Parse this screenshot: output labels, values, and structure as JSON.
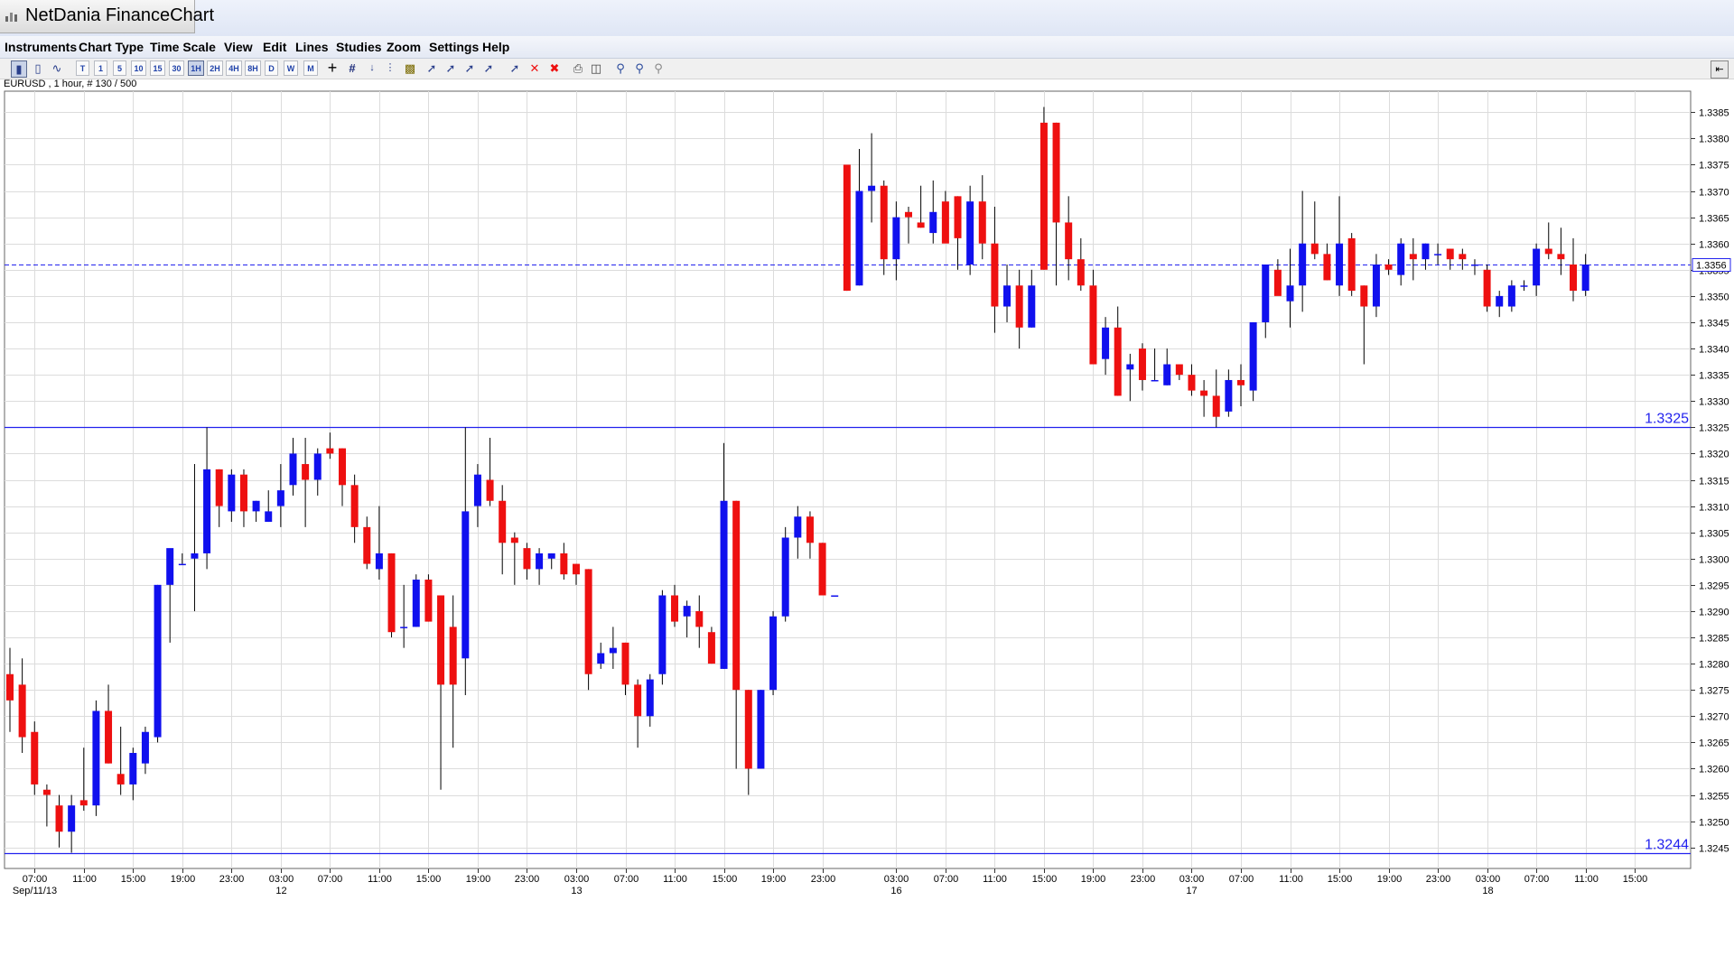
{
  "app": {
    "title": "NetDania FinanceChart"
  },
  "menu": [
    "Instruments",
    "Chart Type",
    "Time Scale",
    "View",
    "Edit",
    "Lines",
    "Studies",
    "Zoom",
    "Settings",
    "Help"
  ],
  "toolbar": {
    "timeframes": [
      "T",
      "1",
      "5",
      "10",
      "15",
      "30",
      "1H",
      "2H",
      "4H",
      "8H",
      "D",
      "W",
      "M"
    ],
    "active_timeframe": "1H",
    "icons": [
      "candles-icon",
      "bar-chart-icon",
      "line-chart-icon",
      "crosshair-icon",
      "grid-icon",
      "arrow-down-icon",
      "dotted-bars-icon",
      "volume-icon",
      "trendline-icon",
      "parallel-lines-icon",
      "channel-icon",
      "fibonacci-icon",
      "delete-line-icon",
      "delete-icon",
      "delete-all-icon",
      "print-icon",
      "print-preview-icon",
      "zoom-in-icon",
      "zoom-out-icon",
      "zoom-reset-icon"
    ]
  },
  "chart_info": "EURUSD , 1 hour, # 130 / 500",
  "colors": {
    "up": "#1010ee",
    "down": "#ee1010",
    "level": "#2222ee",
    "grid": "#dcdcdc"
  },
  "chart_data": {
    "type": "candlestick",
    "instrument": "EURUSD",
    "interval": "1 hour",
    "ylim": [
      1.3241,
      1.3389
    ],
    "yticks": [
      1.3245,
      1.325,
      1.3255,
      1.326,
      1.3265,
      1.327,
      1.3275,
      1.328,
      1.3285,
      1.329,
      1.3295,
      1.33,
      1.3305,
      1.331,
      1.3315,
      1.332,
      1.3325,
      1.333,
      1.3335,
      1.334,
      1.3345,
      1.335,
      1.3355,
      1.336,
      1.3365,
      1.337,
      1.3375,
      1.338,
      1.3385
    ],
    "current_price": 1.3356,
    "current_price_label": "1.3356",
    "levels": [
      {
        "value": 1.3325,
        "label": "1.3325"
      },
      {
        "value": 1.3244,
        "label": "1.3244"
      }
    ],
    "x_ticks": [
      {
        "i": 2,
        "label": "07:00",
        "date": "Sep/11/13"
      },
      {
        "i": 6,
        "label": "11:00"
      },
      {
        "i": 10,
        "label": "15:00"
      },
      {
        "i": 14,
        "label": "19:00"
      },
      {
        "i": 18,
        "label": "23:00"
      },
      {
        "i": 22,
        "label": "03:00",
        "date": "12"
      },
      {
        "i": 26,
        "label": "07:00"
      },
      {
        "i": 30,
        "label": "11:00"
      },
      {
        "i": 34,
        "label": "15:00"
      },
      {
        "i": 38,
        "label": "19:00"
      },
      {
        "i": 42,
        "label": "23:00"
      },
      {
        "i": 46,
        "label": "03:00",
        "date": "13"
      },
      {
        "i": 50,
        "label": "07:00"
      },
      {
        "i": 54,
        "label": "11:00"
      },
      {
        "i": 58,
        "label": "15:00"
      },
      {
        "i": 62,
        "label": "19:00"
      },
      {
        "i": 66,
        "label": "23:00"
      },
      {
        "i": 72,
        "label": "03:00",
        "date": "16"
      },
      {
        "i": 76,
        "label": "07:00"
      },
      {
        "i": 80,
        "label": "11:00"
      },
      {
        "i": 84,
        "label": "15:00"
      },
      {
        "i": 88,
        "label": "19:00"
      },
      {
        "i": 92,
        "label": "23:00"
      },
      {
        "i": 96,
        "label": "03:00",
        "date": "17"
      },
      {
        "i": 100,
        "label": "07:00"
      },
      {
        "i": 104,
        "label": "11:00"
      },
      {
        "i": 108,
        "label": "15:00"
      },
      {
        "i": 112,
        "label": "19:00"
      },
      {
        "i": 116,
        "label": "23:00"
      },
      {
        "i": 120,
        "label": "03:00",
        "date": "18"
      },
      {
        "i": 124,
        "label": "07:00"
      },
      {
        "i": 128,
        "label": "11:00"
      },
      {
        "i": 132,
        "label": "15:00"
      }
    ],
    "ohlc": [
      [
        1.3278,
        1.3283,
        1.3267,
        1.3273
      ],
      [
        1.3276,
        1.3281,
        1.3263,
        1.3266
      ],
      [
        1.3267,
        1.3269,
        1.3255,
        1.3257
      ],
      [
        1.3256,
        1.3257,
        1.3249,
        1.3255
      ],
      [
        1.3253,
        1.3255,
        1.3245,
        1.3248
      ],
      [
        1.3248,
        1.3255,
        1.3244,
        1.3253
      ],
      [
        1.3254,
        1.3264,
        1.3252,
        1.3253
      ],
      [
        1.3253,
        1.3273,
        1.3251,
        1.3271
      ],
      [
        1.3271,
        1.3276,
        1.3261,
        1.3261
      ],
      [
        1.3259,
        1.3268,
        1.3255,
        1.3257
      ],
      [
        1.3257,
        1.3264,
        1.3254,
        1.3263
      ],
      [
        1.3261,
        1.3268,
        1.3259,
        1.3267
      ],
      [
        1.3266,
        1.3295,
        1.3265,
        1.3295
      ],
      [
        1.3295,
        1.3301,
        1.3284,
        1.3302
      ],
      [
        1.3299,
        1.3301,
        1.3299,
        1.3299
      ],
      [
        1.33,
        1.3318,
        1.329,
        1.3301
      ],
      [
        1.3301,
        1.3325,
        1.3298,
        1.3317
      ],
      [
        1.3317,
        1.3317,
        1.3306,
        1.331
      ],
      [
        1.3309,
        1.3317,
        1.3307,
        1.3316
      ],
      [
        1.3316,
        1.3317,
        1.3306,
        1.3309
      ],
      [
        1.3309,
        1.3311,
        1.3307,
        1.3311
      ],
      [
        1.3307,
        1.3313,
        1.3307,
        1.3309
      ],
      [
        1.331,
        1.3318,
        1.3306,
        1.3313
      ],
      [
        1.3314,
        1.3323,
        1.3312,
        1.332
      ],
      [
        1.3318,
        1.3323,
        1.3306,
        1.3315
      ],
      [
        1.3315,
        1.3321,
        1.3312,
        1.332
      ],
      [
        1.3321,
        1.3324,
        1.3319,
        1.332
      ],
      [
        1.3321,
        1.3321,
        1.331,
        1.3314
      ],
      [
        1.3314,
        1.3316,
        1.3303,
        1.3306
      ],
      [
        1.3306,
        1.3308,
        1.3298,
        1.3299
      ],
      [
        1.3298,
        1.331,
        1.3296,
        1.3301
      ],
      [
        1.3301,
        1.3301,
        1.3285,
        1.3286
      ],
      [
        1.3287,
        1.3295,
        1.3283,
        1.3287
      ],
      [
        1.3287,
        1.3297,
        1.3287,
        1.3296
      ],
      [
        1.3296,
        1.3297,
        1.3288,
        1.3288
      ],
      [
        1.3293,
        1.3293,
        1.3256,
        1.3276
      ],
      [
        1.3287,
        1.3293,
        1.3264,
        1.3276
      ],
      [
        1.3281,
        1.3325,
        1.3274,
        1.3309
      ],
      [
        1.331,
        1.3318,
        1.3306,
        1.3316
      ],
      [
        1.3315,
        1.3323,
        1.331,
        1.3311
      ],
      [
        1.3311,
        1.3314,
        1.3297,
        1.3303
      ],
      [
        1.3304,
        1.3305,
        1.3295,
        1.3303
      ],
      [
        1.3302,
        1.3303,
        1.3296,
        1.3298
      ],
      [
        1.3298,
        1.3302,
        1.3295,
        1.3301
      ],
      [
        1.33,
        1.3301,
        1.3298,
        1.3301
      ],
      [
        1.3301,
        1.3303,
        1.3296,
        1.3297
      ],
      [
        1.3299,
        1.3299,
        1.3295,
        1.3297
      ],
      [
        1.3298,
        1.3298,
        1.3275,
        1.3278
      ],
      [
        1.328,
        1.3284,
        1.3279,
        1.3282
      ],
      [
        1.3282,
        1.3287,
        1.3279,
        1.3283
      ],
      [
        1.3284,
        1.3284,
        1.3274,
        1.3276
      ],
      [
        1.3276,
        1.3277,
        1.3264,
        1.327
      ],
      [
        1.327,
        1.3278,
        1.3268,
        1.3277
      ],
      [
        1.3278,
        1.3294,
        1.3276,
        1.3293
      ],
      [
        1.3293,
        1.3295,
        1.3287,
        1.3288
      ],
      [
        1.3289,
        1.3292,
        1.3285,
        1.3291
      ],
      [
        1.329,
        1.3293,
        1.3283,
        1.3287
      ],
      [
        1.3286,
        1.3287,
        1.328,
        1.328
      ],
      [
        1.3279,
        1.3322,
        1.3279,
        1.3311
      ],
      [
        1.3311,
        1.3311,
        1.326,
        1.3275
      ],
      [
        1.3275,
        1.3275,
        1.3255,
        1.326
      ],
      [
        1.326,
        1.3275,
        1.326,
        1.3275
      ],
      [
        1.3275,
        1.329,
        1.3274,
        1.3289
      ],
      [
        1.3289,
        1.3306,
        1.3288,
        1.3304
      ],
      [
        1.3304,
        1.331,
        1.33,
        1.3308
      ],
      [
        1.3308,
        1.3309,
        1.33,
        1.3303
      ],
      [
        1.3303,
        1.3303,
        1.3293,
        1.3293
      ],
      [
        1.3293,
        1.3293,
        1.3293,
        1.3293
      ],
      [
        1.3375,
        1.3375,
        1.3351,
        1.3351
      ],
      [
        1.3352,
        1.3378,
        1.3352,
        1.337
      ],
      [
        1.337,
        1.3381,
        1.3364,
        1.3371
      ],
      [
        1.3371,
        1.3372,
        1.3354,
        1.3357
      ],
      [
        1.3357,
        1.3368,
        1.3353,
        1.3365
      ],
      [
        1.3366,
        1.3367,
        1.336,
        1.3365
      ],
      [
        1.3364,
        1.3371,
        1.3363,
        1.3363
      ],
      [
        1.3362,
        1.3372,
        1.336,
        1.3366
      ],
      [
        1.3368,
        1.337,
        1.3361,
        1.336
      ],
      [
        1.3369,
        1.3369,
        1.3355,
        1.3361
      ],
      [
        1.3356,
        1.3371,
        1.3354,
        1.3368
      ],
      [
        1.3368,
        1.3373,
        1.3357,
        1.336
      ],
      [
        1.336,
        1.3367,
        1.3343,
        1.3348
      ],
      [
        1.3348,
        1.3356,
        1.3345,
        1.3352
      ],
      [
        1.3352,
        1.3355,
        1.334,
        1.3344
      ],
      [
        1.3344,
        1.3355,
        1.3344,
        1.3352
      ],
      [
        1.3383,
        1.3386,
        1.3355,
        1.3355
      ],
      [
        1.3383,
        1.3383,
        1.3352,
        1.3364
      ],
      [
        1.3364,
        1.3369,
        1.3353,
        1.3357
      ],
      [
        1.3357,
        1.3361,
        1.3351,
        1.3352
      ],
      [
        1.3352,
        1.3355,
        1.3337,
        1.3337
      ],
      [
        1.3338,
        1.3346,
        1.3335,
        1.3344
      ],
      [
        1.3344,
        1.3348,
        1.3331,
        1.3331
      ],
      [
        1.3336,
        1.3339,
        1.333,
        1.3337
      ],
      [
        1.334,
        1.3341,
        1.3332,
        1.3334
      ],
      [
        1.3334,
        1.334,
        1.3334,
        1.3334
      ],
      [
        1.3333,
        1.334,
        1.3333,
        1.3337
      ],
      [
        1.3337,
        1.3337,
        1.3334,
        1.3335
      ],
      [
        1.3335,
        1.3337,
        1.3331,
        1.3332
      ],
      [
        1.3332,
        1.3334,
        1.3327,
        1.3331
      ],
      [
        1.3331,
        1.3336,
        1.3325,
        1.3327
      ],
      [
        1.3328,
        1.3336,
        1.3327,
        1.3334
      ],
      [
        1.3334,
        1.3337,
        1.3329,
        1.3333
      ],
      [
        1.3332,
        1.3345,
        1.333,
        1.3345
      ],
      [
        1.3345,
        1.3356,
        1.3342,
        1.3356
      ],
      [
        1.3355,
        1.3357,
        1.3351,
        1.335
      ],
      [
        1.3349,
        1.3359,
        1.3344,
        1.3352
      ],
      [
        1.3352,
        1.337,
        1.3347,
        1.336
      ],
      [
        1.336,
        1.3368,
        1.3357,
        1.3358
      ],
      [
        1.3358,
        1.336,
        1.3353,
        1.3353
      ],
      [
        1.3352,
        1.3369,
        1.335,
        1.336
      ],
      [
        1.3361,
        1.3362,
        1.335,
        1.3351
      ],
      [
        1.3352,
        1.3352,
        1.3337,
        1.3348
      ],
      [
        1.3348,
        1.3358,
        1.3346,
        1.3356
      ],
      [
        1.3356,
        1.3357,
        1.3354,
        1.3355
      ],
      [
        1.3354,
        1.3361,
        1.3352,
        1.336
      ],
      [
        1.3358,
        1.3361,
        1.3353,
        1.3357
      ],
      [
        1.3357,
        1.336,
        1.3355,
        1.336
      ],
      [
        1.3358,
        1.336,
        1.3356,
        1.3358
      ],
      [
        1.3359,
        1.3359,
        1.3355,
        1.3357
      ],
      [
        1.3358,
        1.3359,
        1.3355,
        1.3357
      ],
      [
        1.3356,
        1.3357,
        1.3354,
        1.3356
      ],
      [
        1.3355,
        1.3356,
        1.3347,
        1.3348
      ],
      [
        1.3348,
        1.3351,
        1.3346,
        1.335
      ],
      [
        1.3348,
        1.3353,
        1.3347,
        1.3352
      ],
      [
        1.3352,
        1.3353,
        1.3351,
        1.3352
      ],
      [
        1.3352,
        1.336,
        1.335,
        1.3359
      ],
      [
        1.3359,
        1.3364,
        1.3357,
        1.3358
      ],
      [
        1.3358,
        1.3363,
        1.3354,
        1.3357
      ],
      [
        1.3356,
        1.3361,
        1.3349,
        1.3351
      ],
      [
        1.3351,
        1.3358,
        1.335,
        1.3356
      ]
    ]
  }
}
